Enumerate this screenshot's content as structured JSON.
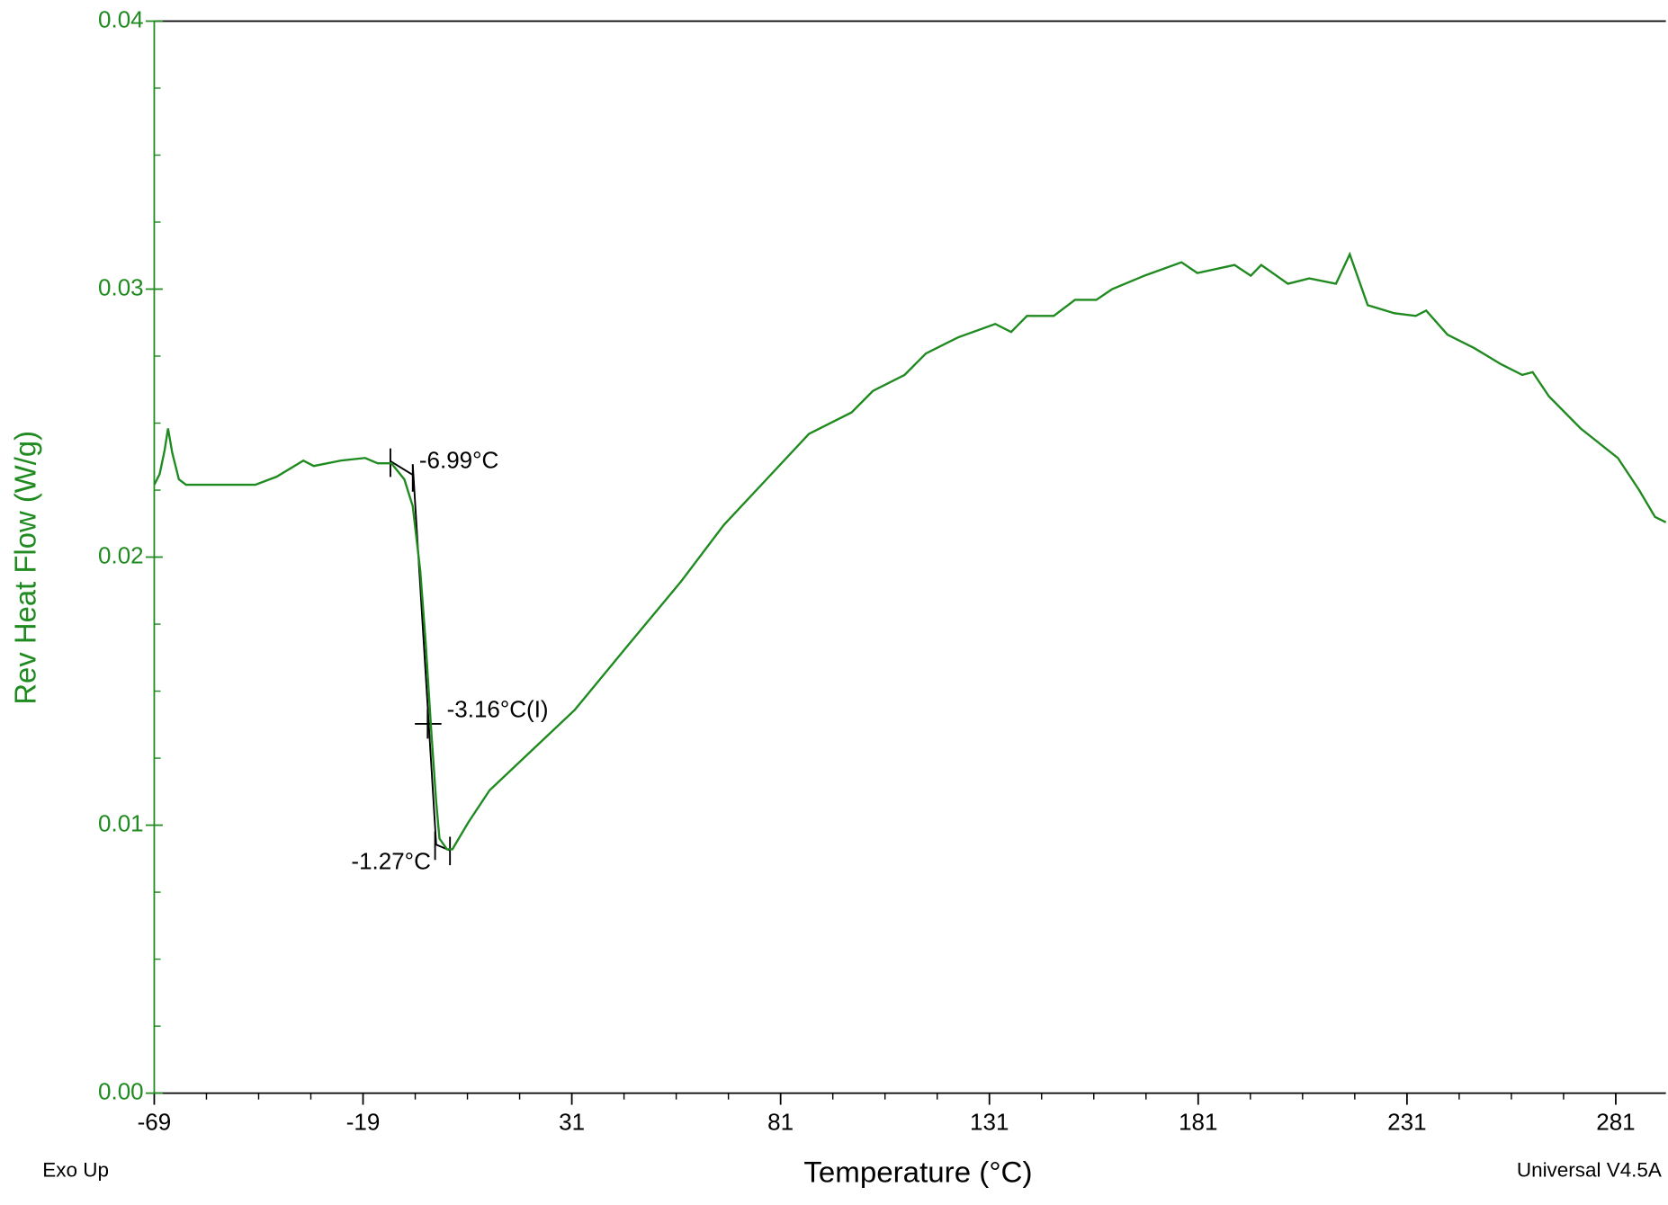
{
  "chart_data": {
    "type": "line",
    "x_label": "Temperature (°C)",
    "y_label": "Rev Heat Flow (W/g)",
    "footer_left": "Exo Up",
    "footer_right": "Universal V4.5A",
    "xlim": [
      -69,
      293
    ],
    "ylim": [
      0,
      0.04
    ],
    "xticks": [
      -69,
      -19,
      31,
      81,
      131,
      181,
      231,
      281
    ],
    "yticks": [
      {
        "value": 0,
        "label": "0.00"
      },
      0.01,
      0.02,
      0.03,
      0.04
    ],
    "annotations": [
      "-6.99°C",
      "-3.16°C(I)",
      "-1.27°C"
    ],
    "series": [
      {
        "color": "#1f8a1f",
        "x": [
          -69,
          -67.7,
          -66.5,
          -65.7,
          -64.7,
          -63.1,
          -61.4,
          -55,
          -44.8,
          -39.7,
          -33.3,
          -30.8,
          -24.4,
          -18.5,
          -15.5,
          -12.2,
          -9.1,
          -7.1,
          -5.3,
          -4.0,
          -2.7,
          -1.5,
          -0.7,
          1.1,
          2.4,
          6.2,
          11.3,
          21.5,
          31.7,
          44.4,
          57.2,
          67.4,
          77.6,
          87.8,
          98.0,
          103.1,
          110.7,
          115.8,
          123.5,
          132.4,
          136.2,
          140.0,
          146.4,
          151.5,
          156.6,
          160.4,
          168.1,
          177.0,
          180.8,
          189.7,
          193.6,
          196.1,
          202.5,
          207.6,
          214.0,
          217.3,
          221.6,
          228.0,
          233.1,
          235.6,
          240.7,
          247.1,
          253.5,
          258.6,
          261.1,
          265.0,
          272.6,
          281.5,
          286.6,
          290.4,
          293
        ],
        "values": [
          0.0227,
          0.0231,
          0.024,
          0.0248,
          0.0239,
          0.0229,
          0.0227,
          0.0227,
          0.0227,
          0.023,
          0.0236,
          0.0234,
          0.0236,
          0.0237,
          0.0235,
          0.0235,
          0.0229,
          0.0219,
          0.0195,
          0.0168,
          0.0136,
          0.0109,
          0.0095,
          0.0091,
          0.0091,
          0.0101,
          0.0113,
          0.0128,
          0.0143,
          0.0167,
          0.0191,
          0.0212,
          0.0229,
          0.0246,
          0.0254,
          0.0262,
          0.0268,
          0.0276,
          0.0282,
          0.0287,
          0.0284,
          0.029,
          0.029,
          0.0296,
          0.0296,
          0.03,
          0.0305,
          0.031,
          0.0306,
          0.0309,
          0.0305,
          0.0309,
          0.0302,
          0.0304,
          0.0302,
          0.0313,
          0.0294,
          0.0291,
          0.029,
          0.0292,
          0.0283,
          0.0278,
          0.0272,
          0.0268,
          0.0269,
          0.026,
          0.0248,
          0.0237,
          0.0225,
          0.0215,
          0.0213
        ]
      }
    ]
  }
}
